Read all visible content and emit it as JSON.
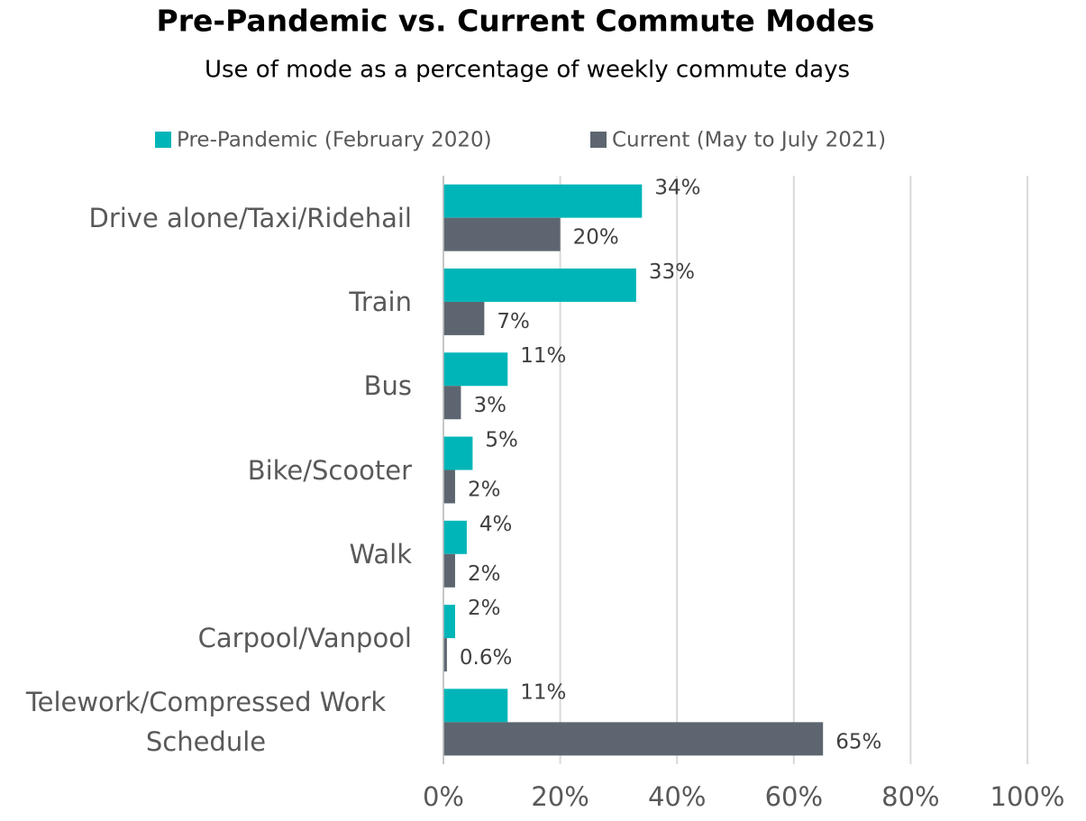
{
  "chart_data": {
    "type": "bar",
    "orientation": "horizontal",
    "title": "Pre-Pandemic vs. Current Commute Modes",
    "subtitle": "Use of mode as a percentage of weekly commute days",
    "categories": [
      "Drive alone/Taxi/Ridehail",
      "Train",
      "Bus",
      "Bike/Scooter",
      "Walk",
      "Carpool/Vanpool",
      "Telework/Compressed Work Schedule"
    ],
    "series": [
      {
        "name": "Pre-Pandemic (February 2020)",
        "color": "#00b5b8",
        "values": [
          34,
          33,
          11,
          5,
          4,
          2,
          11
        ],
        "value_labels": [
          "34%",
          "33%",
          "11%",
          "5%",
          "4%",
          "2%",
          "11%"
        ]
      },
      {
        "name": "Current (May to July 2021)",
        "color": "#5d6670",
        "values": [
          20,
          7,
          3,
          2,
          2,
          0.6,
          65
        ],
        "value_labels": [
          "20%",
          "7%",
          "3%",
          "2%",
          "2%",
          "0.6%",
          "65%"
        ]
      }
    ],
    "xlim": [
      0,
      100
    ],
    "xticks": [
      {
        "value": 0,
        "label": "0%"
      },
      {
        "value": 20,
        "label": "20%"
      },
      {
        "value": 40,
        "label": "40%"
      },
      {
        "value": 60,
        "label": "60%"
      },
      {
        "value": 80,
        "label": "80%"
      },
      {
        "value": 100,
        "label": "100%"
      }
    ],
    "grid": true,
    "legend": "top"
  }
}
